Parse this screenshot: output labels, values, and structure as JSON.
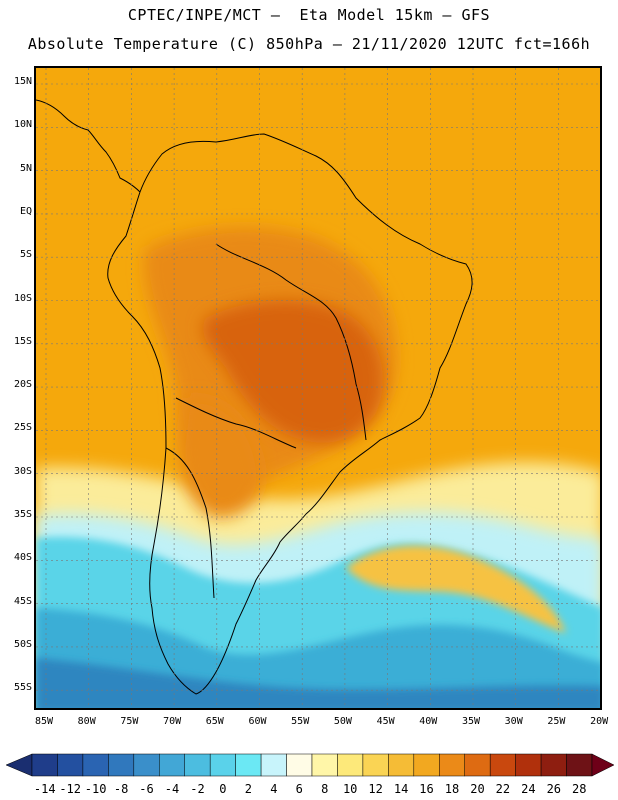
{
  "header": {
    "line1": "CPTEC/INPE/MCT –  Eta Model 15km – GFS",
    "line2": "Absolute Temperature (C) 850hPa – 21/11/2020 12UTC fct=166h"
  },
  "map": {
    "lat_labels": [
      "15N",
      "10N",
      "5N",
      "EQ",
      "5S",
      "10S",
      "15S",
      "20S",
      "25S",
      "30S",
      "35S",
      "40S",
      "45S",
      "50S",
      "55S"
    ],
    "lon_labels": [
      "85W",
      "80W",
      "75W",
      "70W",
      "65W",
      "60W",
      "55W",
      "50W",
      "45W",
      "40W",
      "35W",
      "30W",
      "25W",
      "20W"
    ],
    "colors": {
      "ocean_warm": "#f5a80c",
      "land_warm": "#e98a12",
      "hot": "#d8640e",
      "mid": "#f6c243",
      "pale": "#fbec9a",
      "cold1": "#bff1f7",
      "cold2": "#5ad4e8",
      "cold3": "#3aaed6",
      "cold4": "#2e86c0",
      "coast": "#000000",
      "grid": "#777777"
    }
  },
  "colorbar": {
    "labels": [
      "-14",
      "-12",
      "-10",
      "-8",
      "-6",
      "-4",
      "-2",
      "0",
      "2",
      "4",
      "6",
      "8",
      "10",
      "12",
      "14",
      "16",
      "18",
      "20",
      "22",
      "24",
      "26",
      "28"
    ],
    "colors": [
      "#1f3d8a",
      "#2350a0",
      "#2a64b2",
      "#3078bd",
      "#3a8fca",
      "#42a7d6",
      "#4cbde0",
      "#5ad2ea",
      "#6be8f4",
      "#c8f4fb",
      "#fffce6",
      "#fff6a8",
      "#fde97a",
      "#fad454",
      "#f5bc36",
      "#f2a820",
      "#eb8a18",
      "#de6b12",
      "#c9480e",
      "#b0300c",
      "#8e1e10",
      "#6e1216"
    ],
    "under_color": "#1a2e70",
    "over_color": "#6e0018"
  }
}
